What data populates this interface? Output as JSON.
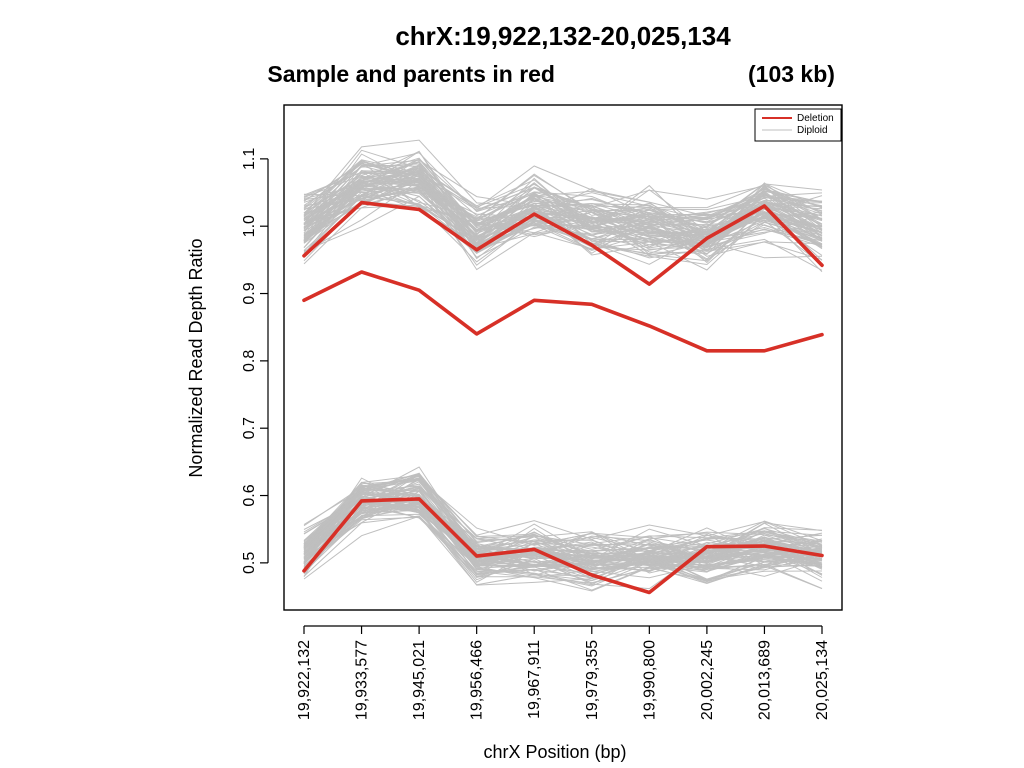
{
  "chart_data": {
    "type": "line",
    "title": "chrX:19,922,132-20,025,134",
    "subtitle": "Sample and parents in red",
    "subtitle_extra": "(103 kb)",
    "xlabel": "chrX Position (bp)",
    "ylabel": "Normalized Read Depth Ratio",
    "ylim": [
      0.43,
      1.18
    ],
    "y_ticks": [
      0.5,
      0.6,
      0.7,
      0.8,
      0.9,
      1.0,
      1.1
    ],
    "y_tick_labels": [
      "0.5",
      "0.6",
      "0.7",
      "0.8",
      "0.9",
      "1.0",
      "1.1"
    ],
    "x_tick_labels": [
      "19,922,132",
      "19,933,577",
      "19,945,021",
      "19,956,466",
      "19,967,911",
      "19,979,355",
      "19,990,800",
      "20,002,245",
      "20,013,689",
      "20,025,134"
    ],
    "grid": false,
    "legend_position": "top-right",
    "legend": [
      {
        "label": "Deletion",
        "color": "#d73027"
      },
      {
        "label": "Diploid",
        "color": "#bfbfbf"
      }
    ],
    "series": [
      {
        "role": "deletion",
        "color": "#d73027",
        "values": [
          0.956,
          1.035,
          1.025,
          0.965,
          1.018,
          0.972,
          0.914,
          0.982,
          1.03,
          0.942
        ]
      },
      {
        "role": "deletion",
        "color": "#d73027",
        "values": [
          0.89,
          0.932,
          0.905,
          0.84,
          0.89,
          0.884,
          0.852,
          0.815,
          0.815,
          0.839
        ]
      },
      {
        "role": "deletion",
        "color": "#d73027",
        "values": [
          0.488,
          0.592,
          0.595,
          0.51,
          0.52,
          0.482,
          0.456,
          0.524,
          0.525,
          0.511
        ]
      }
    ],
    "background_bands": [
      {
        "role": "diploid",
        "color": "#bfbfbf",
        "count": 90,
        "mean": [
          1.0,
          1.065,
          1.07,
          0.99,
          1.025,
          1.005,
          1.0,
          0.985,
          1.025,
          1.0
        ],
        "spread": 0.025
      },
      {
        "role": "diploid",
        "color": "#bfbfbf",
        "count": 90,
        "mean": [
          0.51,
          0.592,
          0.6,
          0.505,
          0.512,
          0.502,
          0.508,
          0.51,
          0.518,
          0.51
        ],
        "spread": 0.02
      }
    ]
  }
}
